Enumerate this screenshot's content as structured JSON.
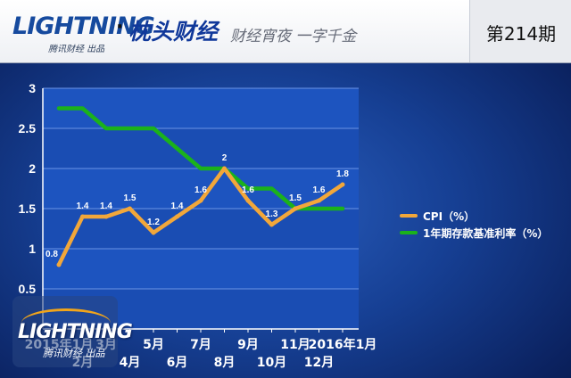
{
  "header": {
    "logo_text": "LIGHTNING",
    "logo_sub": "腾讯财经 出品",
    "brand_dot": "·",
    "brand": "枕头财经",
    "slogan": "财经宵夜 一字千金",
    "issue": "第214期"
  },
  "watermark": {
    "logo_text": "LIGHTNING",
    "sub": "腾讯财经 出品"
  },
  "colors": {
    "cpi": "#f2a73a",
    "rate": "#1bb21b",
    "plot_band_a": "#1d54bf",
    "plot_band_b": "#1a4db3"
  },
  "chart_data": {
    "type": "line",
    "title": "",
    "xlabel": "",
    "ylabel": "",
    "ylim": [
      0,
      3
    ],
    "yticks": [
      0.5,
      1,
      1.5,
      2,
      2.5,
      3
    ],
    "ytick_labels": [
      "0.5",
      "1",
      "1.5",
      "2",
      "2.5",
      "3"
    ],
    "x_tick_labels": [
      {
        "label": "2015年1月",
        "row": 0
      },
      {
        "label": "2月",
        "row": 1
      },
      {
        "label": "3月",
        "row": 0
      },
      {
        "label": "4月",
        "row": 1
      },
      {
        "label": "5月",
        "row": 0
      },
      {
        "label": "6月",
        "row": 1
      },
      {
        "label": "7月",
        "row": 0
      },
      {
        "label": "8月",
        "row": 1
      },
      {
        "label": "9月",
        "row": 0
      },
      {
        "label": "10月",
        "row": 1
      },
      {
        "label": "11月",
        "row": 0
      },
      {
        "label": "12月",
        "row": 1
      },
      {
        "label": "2016年1月",
        "row": 0
      }
    ],
    "grid": true,
    "legend_position": "right",
    "series": [
      {
        "name": "CPI（%）",
        "color": "#f2a73a",
        "values": [
          0.8,
          1.4,
          1.4,
          1.5,
          1.2,
          1.4,
          1.6,
          2.0,
          1.6,
          1.3,
          1.5,
          1.6,
          1.8
        ],
        "labels": [
          "0.8",
          "1.4",
          "1.4",
          "1.5",
          "1.2",
          "1.4",
          "1.6",
          "2",
          "1.6",
          "1.3",
          "1.5",
          "1.6",
          "1.8"
        ]
      },
      {
        "name": "1年期存款基准利率（%）",
        "color": "#1bb21b",
        "values": [
          2.75,
          2.75,
          2.5,
          2.5,
          2.5,
          2.25,
          2.0,
          2.0,
          1.75,
          1.75,
          1.5,
          1.5,
          1.5
        ]
      }
    ]
  }
}
